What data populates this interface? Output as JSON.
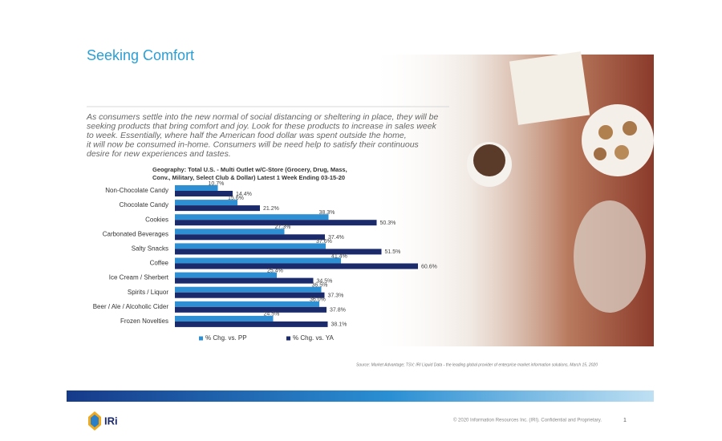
{
  "title": "Seeking Comfort",
  "body": [
    "As consumers settle into the new normal of social distancing or sheltering in place, they will be",
    "seeking products that bring comfort and joy. Look for these products to increase in sales week",
    "to week. Essentially, where half the American food dollar was spent outside the home,",
    "it will now be consumed in-home. Consumers will be need help to satisfy their continuous",
    "desire for new experiences and tastes."
  ],
  "chart_data": {
    "type": "bar",
    "orientation": "horizontal",
    "subtitle": [
      "Geography: Total U.S. - Multi Outlet w/C-Store (Grocery, Drug, Mass,",
      "Conv., Military, Select Club & Dollar) Latest 1 Week Ending 03-15-20"
    ],
    "categories": [
      "Non-Chocolate Candy",
      "Chocolate Candy",
      "Cookies",
      "Carbonated Beverages",
      "Salty Snacks",
      "Coffee",
      "Ice Cream / Sherbert",
      "Spirits / Liquor",
      "Beer / Ale / Alcoholic Cider",
      "Frozen Novelties"
    ],
    "series": [
      {
        "name": "% Chg. vs. PP",
        "color": "#2f8fd3",
        "values": [
          10.7,
          15.6,
          38.3,
          27.3,
          37.6,
          41.4,
          25.4,
          36.5,
          36.0,
          24.5
        ],
        "value_labels": [
          "10.7%",
          "15.6%",
          "38.3%",
          "27.3%",
          "37.6%",
          "41.4%",
          "25.4%",
          "36.5%",
          "36.0%",
          "24.5%"
        ]
      },
      {
        "name": "% Chg. vs. YA",
        "color": "#1b2a6b",
        "values": [
          14.4,
          21.2,
          50.3,
          37.4,
          51.5,
          60.6,
          34.5,
          37.3,
          37.8,
          38.1
        ],
        "value_labels": [
          "14.4%",
          "21.2%",
          "50.3%",
          "37.4%",
          "51.5%",
          "60.6%",
          "34.5%",
          "37.3%",
          "37.8%",
          "38.1%"
        ]
      }
    ],
    "legend": "bottom"
  },
  "source": "Source: Market Advantage; TSV; IRI Liquid Data - the leading global provider of enterprise market information solutions, March 15, 2020",
  "footer": {
    "logo": "IRi",
    "copyright": "© 2020 Information Resources Inc. (IRI). Confidential and Proprietary.",
    "page": "1"
  }
}
